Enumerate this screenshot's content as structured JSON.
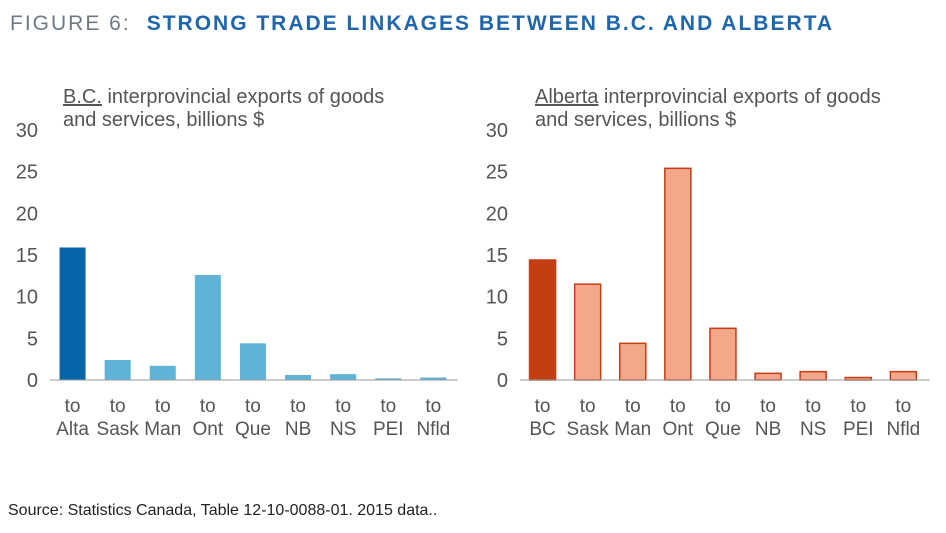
{
  "figure": {
    "label": "FIGURE 6:",
    "title": "STRONG TRADE LINKAGES BETWEEN B.C. AND ALBERTA",
    "source": "Source:  Statistics Canada, Table 12-10-0088-01.  2015 data.."
  },
  "colors": {
    "bc_primary": "#0565a8",
    "bc_secondary": "#5eb3d6",
    "ab_primary": "#c33e12",
    "ab_secondary": "#f4a78a",
    "ab_outline": "#c33e12",
    "axis": "#9a9a9a",
    "text": "#555555"
  },
  "chart_data": [
    {
      "type": "bar",
      "title_underlined": "B.C.",
      "title_line1_rest": " interprovincial exports of goods",
      "title_line2": "and services, billions $",
      "categories_top": [
        "to",
        "to",
        "to",
        "to",
        "to",
        "to",
        "to",
        "to",
        "to"
      ],
      "categories": [
        "Alta",
        "Sask",
        "Man",
        "Ont",
        "Que",
        "NB",
        "NS",
        "PEI",
        "Nfld"
      ],
      "values": [
        15.9,
        2.4,
        1.7,
        12.6,
        4.4,
        0.6,
        0.7,
        0.2,
        0.3
      ],
      "highlight_index": 0,
      "ylim": [
        0,
        30
      ],
      "yticks": [
        0,
        5,
        10,
        15,
        20,
        25,
        30
      ],
      "grid": false
    },
    {
      "type": "bar",
      "title_underlined": "Alberta",
      "title_line1_rest": " interprovincial exports of goods",
      "title_line2": "and services, billions $",
      "categories_top": [
        "to",
        "to",
        "to",
        "to",
        "to",
        "to",
        "to",
        "to",
        "to"
      ],
      "categories": [
        "BC",
        "Sask",
        "Man",
        "Ont",
        "Que",
        "NB",
        "NS",
        "PEI",
        "Nfld"
      ],
      "values": [
        14.4,
        11.5,
        4.4,
        25.4,
        6.2,
        0.8,
        1.0,
        0.3,
        1.0
      ],
      "highlight_index": 0,
      "ylim": [
        0,
        30
      ],
      "yticks": [
        0,
        5,
        10,
        15,
        20,
        25,
        30
      ],
      "grid": false
    }
  ]
}
